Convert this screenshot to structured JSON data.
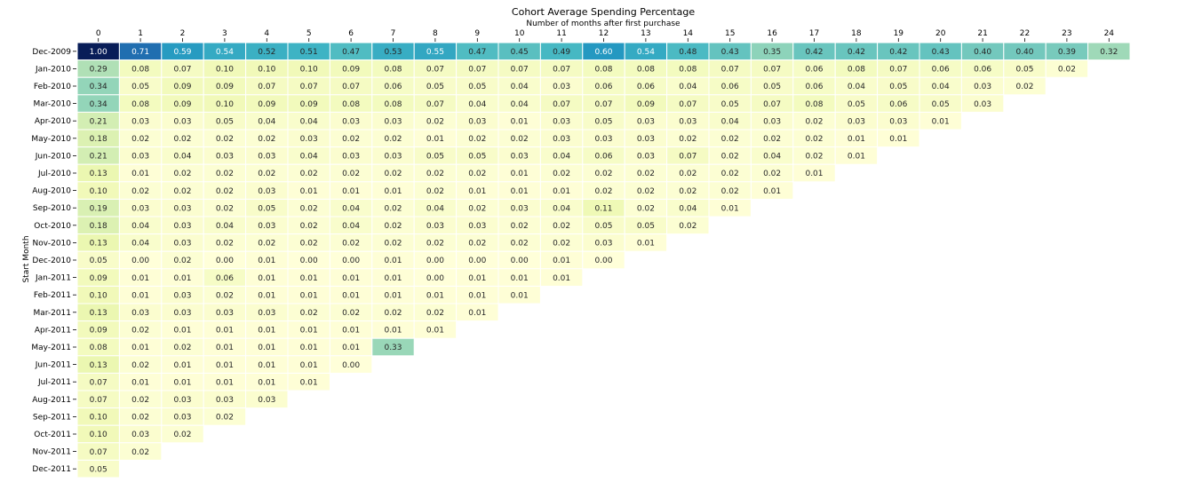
{
  "chart_data": {
    "type": "heatmap",
    "title": "Cohort Average Spending Percentage",
    "xlabel": "Number of months after first purchase",
    "ylabel": "Start Month",
    "x": [
      "0",
      "1",
      "2",
      "3",
      "4",
      "5",
      "6",
      "7",
      "8",
      "9",
      "10",
      "11",
      "12",
      "13",
      "14",
      "15",
      "16",
      "17",
      "18",
      "19",
      "20",
      "21",
      "22",
      "23",
      "24"
    ],
    "y": [
      "Dec-2009",
      "Jan-2010",
      "Feb-2010",
      "Mar-2010",
      "Apr-2010",
      "May-2010",
      "Jun-2010",
      "Jul-2010",
      "Aug-2010",
      "Sep-2010",
      "Oct-2010",
      "Nov-2010",
      "Dec-2010",
      "Jan-2011",
      "Feb-2011",
      "Mar-2011",
      "Apr-2011",
      "May-2011",
      "Jun-2011",
      "Jul-2011",
      "Aug-2011",
      "Sep-2011",
      "Oct-2011",
      "Nov-2011",
      "Dec-2011"
    ],
    "values": [
      [
        1.0,
        0.71,
        0.59,
        0.54,
        0.52,
        0.51,
        0.47,
        0.53,
        0.55,
        0.47,
        0.45,
        0.49,
        0.6,
        0.54,
        0.48,
        0.43,
        0.35,
        0.42,
        0.42,
        0.42,
        0.43,
        0.4,
        0.4,
        0.39,
        0.32
      ],
      [
        0.29,
        0.08,
        0.07,
        0.1,
        0.1,
        0.1,
        0.09,
        0.08,
        0.07,
        0.07,
        0.07,
        0.07,
        0.08,
        0.08,
        0.08,
        0.07,
        0.07,
        0.06,
        0.08,
        0.07,
        0.06,
        0.06,
        0.05,
        0.02
      ],
      [
        0.34,
        0.05,
        0.09,
        0.09,
        0.07,
        0.07,
        0.07,
        0.06,
        0.05,
        0.05,
        0.04,
        0.03,
        0.06,
        0.06,
        0.04,
        0.06,
        0.05,
        0.06,
        0.04,
        0.05,
        0.04,
        0.03,
        0.02
      ],
      [
        0.34,
        0.08,
        0.09,
        0.1,
        0.09,
        0.09,
        0.08,
        0.08,
        0.07,
        0.04,
        0.04,
        0.07,
        0.07,
        0.09,
        0.07,
        0.05,
        0.07,
        0.08,
        0.05,
        0.06,
        0.05,
        0.03
      ],
      [
        0.21,
        0.03,
        0.03,
        0.05,
        0.04,
        0.04,
        0.03,
        0.03,
        0.02,
        0.03,
        0.01,
        0.03,
        0.05,
        0.03,
        0.03,
        0.04,
        0.03,
        0.02,
        0.03,
        0.03,
        0.01
      ],
      [
        0.18,
        0.02,
        0.02,
        0.02,
        0.02,
        0.03,
        0.02,
        0.02,
        0.01,
        0.02,
        0.02,
        0.03,
        0.03,
        0.03,
        0.02,
        0.02,
        0.02,
        0.02,
        0.01,
        0.01
      ],
      [
        0.21,
        0.03,
        0.04,
        0.03,
        0.03,
        0.04,
        0.03,
        0.03,
        0.05,
        0.05,
        0.03,
        0.04,
        0.06,
        0.03,
        0.07,
        0.02,
        0.04,
        0.02,
        0.01
      ],
      [
        0.13,
        0.01,
        0.02,
        0.02,
        0.02,
        0.02,
        0.02,
        0.02,
        0.02,
        0.02,
        0.01,
        0.02,
        0.02,
        0.02,
        0.02,
        0.02,
        0.02,
        0.01
      ],
      [
        0.1,
        0.02,
        0.02,
        0.02,
        0.03,
        0.01,
        0.01,
        0.01,
        0.02,
        0.01,
        0.01,
        0.01,
        0.02,
        0.02,
        0.02,
        0.02,
        0.01
      ],
      [
        0.19,
        0.03,
        0.03,
        0.02,
        0.05,
        0.02,
        0.04,
        0.02,
        0.04,
        0.02,
        0.03,
        0.04,
        0.11,
        0.02,
        0.04,
        0.01
      ],
      [
        0.18,
        0.04,
        0.03,
        0.04,
        0.03,
        0.02,
        0.04,
        0.02,
        0.03,
        0.03,
        0.02,
        0.02,
        0.05,
        0.05,
        0.02
      ],
      [
        0.13,
        0.04,
        0.03,
        0.02,
        0.02,
        0.02,
        0.02,
        0.02,
        0.02,
        0.02,
        0.02,
        0.02,
        0.03,
        0.01
      ],
      [
        0.05,
        0.0,
        0.02,
        0.0,
        0.01,
        0.0,
        0.0,
        0.01,
        0.0,
        0.0,
        0.0,
        0.01,
        0.0
      ],
      [
        0.09,
        0.01,
        0.01,
        0.06,
        0.01,
        0.01,
        0.01,
        0.01,
        0.0,
        0.01,
        0.01,
        0.01
      ],
      [
        0.1,
        0.01,
        0.03,
        0.02,
        0.01,
        0.01,
        0.01,
        0.01,
        0.01,
        0.01,
        0.01
      ],
      [
        0.13,
        0.03,
        0.03,
        0.03,
        0.03,
        0.02,
        0.02,
        0.02,
        0.02,
        0.01
      ],
      [
        0.09,
        0.02,
        0.01,
        0.01,
        0.01,
        0.01,
        0.01,
        0.01,
        0.01
      ],
      [
        0.08,
        0.01,
        0.02,
        0.01,
        0.01,
        0.01,
        0.01,
        0.33
      ],
      [
        0.13,
        0.02,
        0.01,
        0.01,
        0.01,
        0.01,
        0.0
      ],
      [
        0.07,
        0.01,
        0.01,
        0.01,
        0.01,
        0.01
      ],
      [
        0.07,
        0.02,
        0.03,
        0.03,
        0.03
      ],
      [
        0.1,
        0.02,
        0.03,
        0.02
      ],
      [
        0.1,
        0.03,
        0.02
      ],
      [
        0.07,
        0.02
      ],
      [
        0.05
      ]
    ],
    "colormap": "YlGnBu",
    "value_format": "0.00",
    "colorbar": false,
    "grid": false
  }
}
